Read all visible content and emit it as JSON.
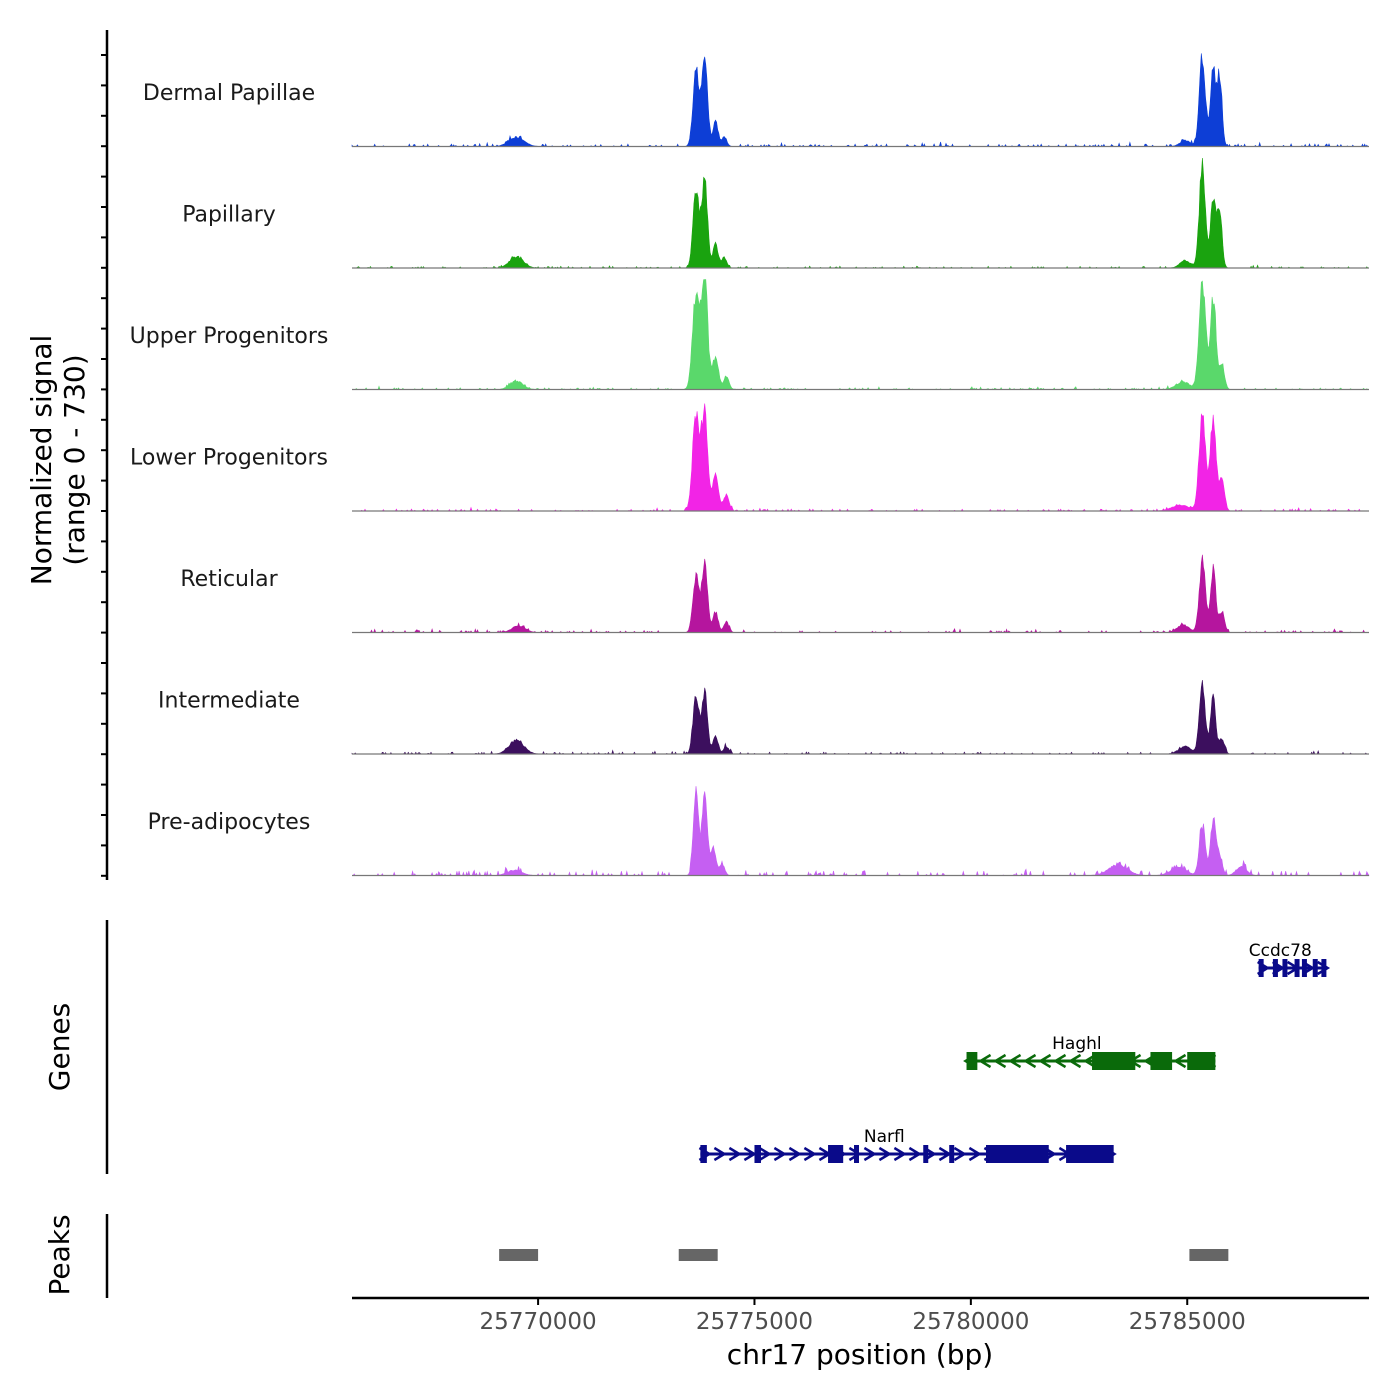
{
  "chart_data": {
    "type": "area",
    "chromosome": "chr17",
    "xlabel": "chr17 position (bp)",
    "ylabel_line1": "Normalized signal",
    "ylabel_line2": "(range 0 - 730)",
    "signal_range": [
      0,
      730
    ],
    "xlim": [
      25765700,
      25789200
    ],
    "x_ticks": [
      {
        "value": 25770000,
        "label": "25770000"
      },
      {
        "value": 25775000,
        "label": "25775000"
      },
      {
        "value": 25780000,
        "label": "25780000"
      },
      {
        "value": 25785000,
        "label": "25785000"
      }
    ],
    "coverage_tracks": [
      {
        "name": "Dermal Papillae",
        "color": "#0d3ed6",
        "peaks": [
          {
            "center": 25769500,
            "width": 180,
            "height": 60
          },
          {
            "center": 25773650,
            "width": 70,
            "height": 500
          },
          {
            "center": 25773850,
            "width": 65,
            "height": 560
          },
          {
            "center": 25774100,
            "width": 60,
            "height": 160
          },
          {
            "center": 25774300,
            "width": 60,
            "height": 60
          },
          {
            "center": 25785350,
            "width": 70,
            "height": 610
          },
          {
            "center": 25785600,
            "width": 60,
            "height": 500
          },
          {
            "center": 25785750,
            "width": 55,
            "height": 470
          },
          {
            "center": 25784950,
            "width": 120,
            "height": 40
          }
        ],
        "noise": 12,
        "seed": 11
      },
      {
        "name": "Papillary",
        "color": "#1aa30f",
        "peaks": [
          {
            "center": 25769500,
            "width": 160,
            "height": 75
          },
          {
            "center": 25773650,
            "width": 70,
            "height": 520
          },
          {
            "center": 25773850,
            "width": 65,
            "height": 590
          },
          {
            "center": 25774100,
            "width": 60,
            "height": 160
          },
          {
            "center": 25774300,
            "width": 60,
            "height": 70
          },
          {
            "center": 25785350,
            "width": 70,
            "height": 690
          },
          {
            "center": 25785600,
            "width": 60,
            "height": 450
          },
          {
            "center": 25785750,
            "width": 55,
            "height": 390
          },
          {
            "center": 25784950,
            "width": 120,
            "height": 50
          }
        ],
        "noise": 8,
        "seed": 22
      },
      {
        "name": "Upper Progenitors",
        "color": "#5ad86b",
        "peaks": [
          {
            "center": 25769500,
            "width": 150,
            "height": 55
          },
          {
            "center": 25773650,
            "width": 80,
            "height": 640
          },
          {
            "center": 25773850,
            "width": 70,
            "height": 720
          },
          {
            "center": 25774100,
            "width": 70,
            "height": 220
          },
          {
            "center": 25774350,
            "width": 60,
            "height": 90
          },
          {
            "center": 25785350,
            "width": 75,
            "height": 730
          },
          {
            "center": 25785600,
            "width": 65,
            "height": 610
          },
          {
            "center": 25785800,
            "width": 60,
            "height": 170
          },
          {
            "center": 25784900,
            "width": 160,
            "height": 50
          }
        ],
        "noise": 8,
        "seed": 33
      },
      {
        "name": "Lower Progenitors",
        "color": "#f224e6",
        "peaks": [
          {
            "center": 25773650,
            "width": 80,
            "height": 640
          },
          {
            "center": 25773850,
            "width": 70,
            "height": 660
          },
          {
            "center": 25774100,
            "width": 70,
            "height": 230
          },
          {
            "center": 25774350,
            "width": 60,
            "height": 110
          },
          {
            "center": 25785350,
            "width": 75,
            "height": 640
          },
          {
            "center": 25785600,
            "width": 65,
            "height": 630
          },
          {
            "center": 25785800,
            "width": 60,
            "height": 220
          },
          {
            "center": 25784850,
            "width": 200,
            "height": 40
          }
        ],
        "noise": 9,
        "seed": 44
      },
      {
        "name": "Reticular",
        "color": "#b5159e",
        "peaks": [
          {
            "center": 25769550,
            "width": 150,
            "height": 45
          },
          {
            "center": 25773650,
            "width": 70,
            "height": 380
          },
          {
            "center": 25773850,
            "width": 65,
            "height": 450
          },
          {
            "center": 25774100,
            "width": 60,
            "height": 140
          },
          {
            "center": 25774350,
            "width": 60,
            "height": 70
          },
          {
            "center": 25785350,
            "width": 70,
            "height": 480
          },
          {
            "center": 25785600,
            "width": 60,
            "height": 430
          },
          {
            "center": 25785800,
            "width": 60,
            "height": 140
          },
          {
            "center": 25784900,
            "width": 140,
            "height": 50
          }
        ],
        "noise": 10,
        "seed": 55
      },
      {
        "name": "Intermediate",
        "color": "#3c0f5e",
        "peaks": [
          {
            "center": 25769500,
            "width": 170,
            "height": 90
          },
          {
            "center": 25773650,
            "width": 70,
            "height": 370
          },
          {
            "center": 25773850,
            "width": 65,
            "height": 410
          },
          {
            "center": 25774100,
            "width": 60,
            "height": 120
          },
          {
            "center": 25774350,
            "width": 60,
            "height": 50
          },
          {
            "center": 25785350,
            "width": 70,
            "height": 450
          },
          {
            "center": 25785600,
            "width": 60,
            "height": 380
          },
          {
            "center": 25785800,
            "width": 60,
            "height": 100
          },
          {
            "center": 25784950,
            "width": 140,
            "height": 50
          }
        ],
        "noise": 9,
        "seed": 66
      },
      {
        "name": "Pre-adipocytes",
        "color": "#c55ff2",
        "peaks": [
          {
            "center": 25769450,
            "width": 170,
            "height": 35
          },
          {
            "center": 25773650,
            "width": 60,
            "height": 580
          },
          {
            "center": 25773850,
            "width": 60,
            "height": 560
          },
          {
            "center": 25774050,
            "width": 60,
            "height": 180
          },
          {
            "center": 25774250,
            "width": 60,
            "height": 80
          },
          {
            "center": 25783400,
            "width": 220,
            "height": 70
          },
          {
            "center": 25785350,
            "width": 70,
            "height": 330
          },
          {
            "center": 25785600,
            "width": 60,
            "height": 370
          },
          {
            "center": 25785750,
            "width": 60,
            "height": 130
          },
          {
            "center": 25786250,
            "width": 120,
            "height": 60
          },
          {
            "center": 25784800,
            "width": 180,
            "height": 55
          }
        ],
        "noise": 22,
        "seed": 77
      }
    ],
    "gene_track_label": "Genes",
    "genes": [
      {
        "name": "Ccdc78",
        "strand": "+",
        "color": "#0a0a8a",
        "row": 0,
        "start": 25786650,
        "end": 25788200,
        "exons": [
          [
            25786650,
            25786750
          ],
          [
            25786980,
            25787080
          ],
          [
            25787200,
            25787300
          ],
          [
            25787480,
            25787560
          ],
          [
            25787650,
            25787710
          ],
          [
            25787900,
            25788000
          ],
          [
            25788100,
            25788200
          ]
        ],
        "label_pos": 25787150
      },
      {
        "name": "Haghl",
        "strand": "-",
        "color": "#0a6a0a",
        "row": 1,
        "start": 25779900,
        "end": 25785650,
        "exons": [
          [
            25779900,
            25780150
          ],
          [
            25782800,
            25783800
          ],
          [
            25784150,
            25784650
          ],
          [
            25785000,
            25785650
          ]
        ],
        "label_pos": 25782450
      },
      {
        "name": "Narfl",
        "strand": "+",
        "color": "#0a0a8a",
        "row": 2,
        "start": 25773750,
        "end": 25783300,
        "exons": [
          [
            25773750,
            25773900
          ],
          [
            25775000,
            25775150
          ],
          [
            25776700,
            25777050
          ],
          [
            25777300,
            25777400
          ],
          [
            25778900,
            25779000
          ],
          [
            25779500,
            25779600
          ],
          [
            25780350,
            25781800
          ],
          [
            25782200,
            25783300
          ]
        ],
        "label_pos": 25778000
      }
    ],
    "peak_track_label": "Peaks",
    "peak_regions": [
      [
        25769100,
        25770000
      ],
      [
        25773250,
        25774150
      ],
      [
        25785050,
        25785950
      ]
    ],
    "colors": {
      "baseline": "#777777",
      "peak_bar": "#666666",
      "axis": "#000000"
    }
  }
}
